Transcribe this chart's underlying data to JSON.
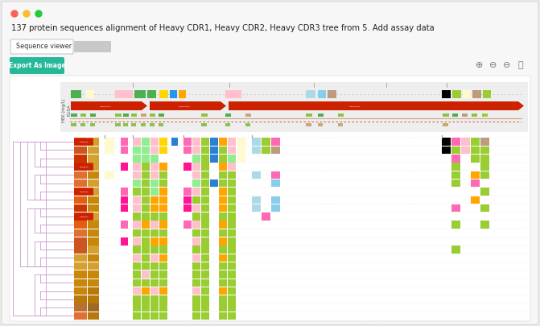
{
  "title": "137 protein sequences alignment of Heavy CDR1, Heavy CDR2, Heavy CDR3 tree from 5. Add assay data",
  "tab_label": "Sequence viewer",
  "button_label": "Export As Image",
  "button_color": "#26b899",
  "bg_outer": "#e8e8e8",
  "traffic_lights": [
    "#ff5f57",
    "#febc2e",
    "#28c840"
  ],
  "dendrogram_color": "#cc99cc",
  "n_rows": 22,
  "col_orange_dark": [
    "#e07030",
    "#cc5520",
    "#cc3300",
    "#cc3300",
    "#e07030",
    "#e07030",
    "#e07030",
    "#e06010",
    "#cc3300",
    "#cc3300",
    "#e06010",
    "#e07030",
    "#cc5520",
    "#cc5520",
    "#d4a030",
    "#d4a030",
    "#c8860a",
    "#c8860a",
    "#c8860a",
    "#b8780a",
    "#b87030",
    "#e07030"
  ],
  "col_orange_med": [
    "#d4a030",
    "#d4a030",
    "#d4a030",
    "#d4a030",
    "#c8860a",
    "#d4a030",
    "#d4a030",
    "#c8860a",
    "#c8860a",
    "#d4a030",
    "#c8860a",
    "#c8860a",
    "#c8860a",
    "#d4a030",
    "#c8860a",
    "#d4a030",
    "#c8860a",
    "#c8860a",
    "#b8780a",
    "#b8780a",
    "#a06820",
    "#b8780a"
  ],
  "col_red_labels": [
    0,
    3,
    6,
    9
  ],
  "col_yellow": [
    "#fffacd",
    "#fffacd",
    "",
    "",
    "#fffacd",
    "",
    "",
    "",
    "",
    "",
    "",
    "",
    "",
    "",
    "",
    "",
    "",
    "",
    "",
    "",
    "",
    ""
  ],
  "col_pink": [
    "#ff69b4",
    "#ff69b4",
    "",
    "#ff1493",
    "",
    "",
    "#ff69b4",
    "#ff1493",
    "#ff1493",
    "",
    "#ff69b4",
    "",
    "#ff1493",
    "",
    "",
    "",
    "",
    "",
    "",
    "",
    "",
    ""
  ],
  "cdr1_col0": [
    "#ffc0cb",
    "#90ee90",
    "#90ee90",
    "#ffc0cb",
    "#ffc0cb",
    "#90ee90",
    "#9acd32",
    "#ffc0cb",
    "#ffc0cb",
    "#9acd32",
    "#ffc0cb",
    "#9acd32",
    "#ffc0cb",
    "#9acd32",
    "#ffc0cb",
    "#9acd32",
    "#9acd32",
    "#9acd32",
    "#ffc0cb",
    "#9acd32",
    "#9acd32",
    "#9acd32"
  ],
  "cdr1_col1": [
    "#90ee90",
    "#90ee90",
    "#90ee90",
    "#9acd32",
    "#9acd32",
    "#9acd32",
    "#9acd32",
    "#9acd32",
    "#9acd32",
    "#9acd32",
    "#ffa500",
    "#9acd32",
    "#9acd32",
    "#9acd32",
    "#9acd32",
    "#9acd32",
    "#ffc0cb",
    "#9acd32",
    "#ffa500",
    "#9acd32",
    "#9acd32",
    "#9acd32"
  ],
  "cdr1_col2": [
    "#ffc0cb",
    "#ffc0cb",
    "#90ee90",
    "#ffc0cb",
    "#ffc0cb",
    "#90ee90",
    "#90ee90",
    "#ffa500",
    "#ffa500",
    "#9acd32",
    "#ffc0cb",
    "#9acd32",
    "#ffa500",
    "#9acd32",
    "#ffc0cb",
    "#9acd32",
    "#9acd32",
    "#9acd32",
    "#ffc0cb",
    "#9acd32",
    "#9acd32",
    "#9acd32"
  ],
  "cdr1_col3": [
    "#ffd700",
    "#ffd700",
    "",
    "#ffa500",
    "#9acd32",
    "#9acd32",
    "#ffa500",
    "#ffa500",
    "#ffa500",
    "#9acd32",
    "#ffa500",
    "#9acd32",
    "#ffa500",
    "#9acd32",
    "#ffa500",
    "#9acd32",
    "#9acd32",
    "#9acd32",
    "#ffa500",
    "#9acd32",
    "#9acd32",
    "#9acd32"
  ],
  "cdr1_col4": [
    "#2b7fd4",
    "",
    "",
    "",
    "",
    "",
    "",
    "",
    "",
    "",
    "",
    "",
    "",
    "",
    "",
    "",
    "",
    "",
    "",
    "",
    "",
    ""
  ],
  "cdr2_col0": [
    "#ff69b4",
    "#ff69b4",
    "",
    "#ff1493",
    "",
    "",
    "#ff69b4",
    "#ff1493",
    "#ff1493",
    "",
    "#ff69b4",
    "",
    "",
    "",
    "",
    "",
    "",
    "",
    "",
    "",
    "",
    ""
  ],
  "cdr2_col1": [
    "#ffc0cb",
    "#ffc0cb",
    "#90ee90",
    "#ffc0cb",
    "#ffc0cb",
    "#90ee90",
    "#ffc0cb",
    "#9acd32",
    "#ffc0cb",
    "#9acd32",
    "#ffc0cb",
    "#9acd32",
    "#ffc0cb",
    "#9acd32",
    "#ffc0cb",
    "#9acd32",
    "#9acd32",
    "#9acd32",
    "#ffc0cb",
    "#9acd32",
    "#9acd32",
    "#9acd32"
  ],
  "cdr2_col2": [
    "#9acd32",
    "#9acd32",
    "#9acd32",
    "#9acd32",
    "#9acd32",
    "#9acd32",
    "#9acd32",
    "#9acd32",
    "#9acd32",
    "#9acd32",
    "#9acd32",
    "#9acd32",
    "#9acd32",
    "#9acd32",
    "#9acd32",
    "#9acd32",
    "#9acd32",
    "#9acd32",
    "#9acd32",
    "#9acd32",
    "#9acd32",
    "#9acd32"
  ],
  "cdr2_col3": [
    "#2b7fd4",
    "#2b7fd4",
    "#2b7fd4",
    "",
    "",
    "#2b7fd4",
    "",
    "",
    "",
    "",
    "",
    "",
    "",
    "",
    "",
    "",
    "",
    "",
    "",
    "",
    "",
    ""
  ],
  "cdr2_col4": [
    "#ffa500",
    "#9acd32",
    "#9acd32",
    "#ffa500",
    "#9acd32",
    "#9acd32",
    "#ffa500",
    "#ffa500",
    "#ffa500",
    "#9acd32",
    "#ffa500",
    "#9acd32",
    "#ffa500",
    "#9acd32",
    "#ffa500",
    "#9acd32",
    "#9acd32",
    "#9acd32",
    "#ffa500",
    "#9acd32",
    "#9acd32",
    "#9acd32"
  ],
  "cdr2_col5": [
    "#ffc0cb",
    "#ffc0cb",
    "#90ee90",
    "#ffc0cb",
    "#9acd32",
    "#9acd32",
    "#9acd32",
    "#9acd32",
    "#9acd32",
    "#9acd32",
    "#9acd32",
    "#9acd32",
    "#9acd32",
    "#9acd32",
    "#9acd32",
    "#9acd32",
    "#9acd32",
    "#9acd32",
    "#9acd32",
    "#9acd32",
    "#9acd32",
    "#9acd32"
  ],
  "cdr2_col6": [
    "#fffacd",
    "#fffacd",
    "#fffacd",
    "",
    "",
    "",
    "",
    "",
    "",
    "",
    "",
    "",
    "",
    "",
    "",
    "",
    "",
    "",
    "",
    "",
    "",
    ""
  ],
  "cdr3_col0": [
    "#add8e6",
    "#add8e6",
    "",
    "",
    "#add8e6",
    "",
    "",
    "#add8e6",
    "#add8e6",
    "",
    "",
    "",
    "",
    "",
    "",
    "",
    "",
    "",
    "",
    "",
    "",
    ""
  ],
  "cdr3_col1": [
    "#9acd32",
    "#9acd32",
    "",
    "",
    "",
    "",
    "",
    "",
    "",
    "#ff69b4",
    "",
    "",
    "",
    "",
    "",
    "",
    "",
    "",
    "",
    "",
    "",
    ""
  ],
  "cdr3_col2": [
    "#ff69b4",
    "#bc9c7c",
    "",
    "",
    "#ff69b4",
    "#87ceeb",
    "",
    "#87ceeb",
    "#87ceeb",
    "",
    "",
    "",
    "",
    "",
    "",
    "",
    "",
    "",
    "",
    "",
    "",
    ""
  ],
  "right_col0": [
    "#000000",
    "#000000",
    "",
    "",
    "",
    "",
    "",
    "",
    "",
    "",
    "",
    "",
    "",
    "",
    "",
    "",
    "",
    "",
    "",
    "",
    "",
    ""
  ],
  "right_col1": [
    "#ff69b4",
    "#9acd32",
    "#ff69b4",
    "#9acd32",
    "#9acd32",
    "#9acd32",
    "",
    "",
    "#ff69b4",
    "",
    "#9acd32",
    "",
    "",
    "#9acd32",
    "",
    "",
    "",
    "",
    "",
    "",
    "",
    ""
  ],
  "right_col2": [
    "#ffc0cb",
    "#ffc0cb",
    "",
    "",
    "",
    "",
    "",
    "",
    "",
    "",
    "",
    "",
    "",
    "",
    "",
    "",
    "",
    "",
    "",
    "",
    "",
    ""
  ],
  "right_col3": [
    "#9acd32",
    "#9acd32",
    "#9acd32",
    "",
    "#ffa500",
    "#ff69b4",
    "",
    "#ffa500",
    "",
    "",
    "",
    "",
    "",
    "",
    "",
    "",
    "",
    "",
    "",
    "",
    "",
    ""
  ],
  "right_col4": [
    "#bc9c7c",
    "#9acd32",
    "#9acd32",
    "#9acd32",
    "#9acd32",
    "",
    "#9acd32",
    "",
    "#9acd32",
    "",
    "#9acd32",
    "",
    "",
    "",
    "",
    "",
    "",
    "",
    "",
    "",
    "",
    ""
  ]
}
